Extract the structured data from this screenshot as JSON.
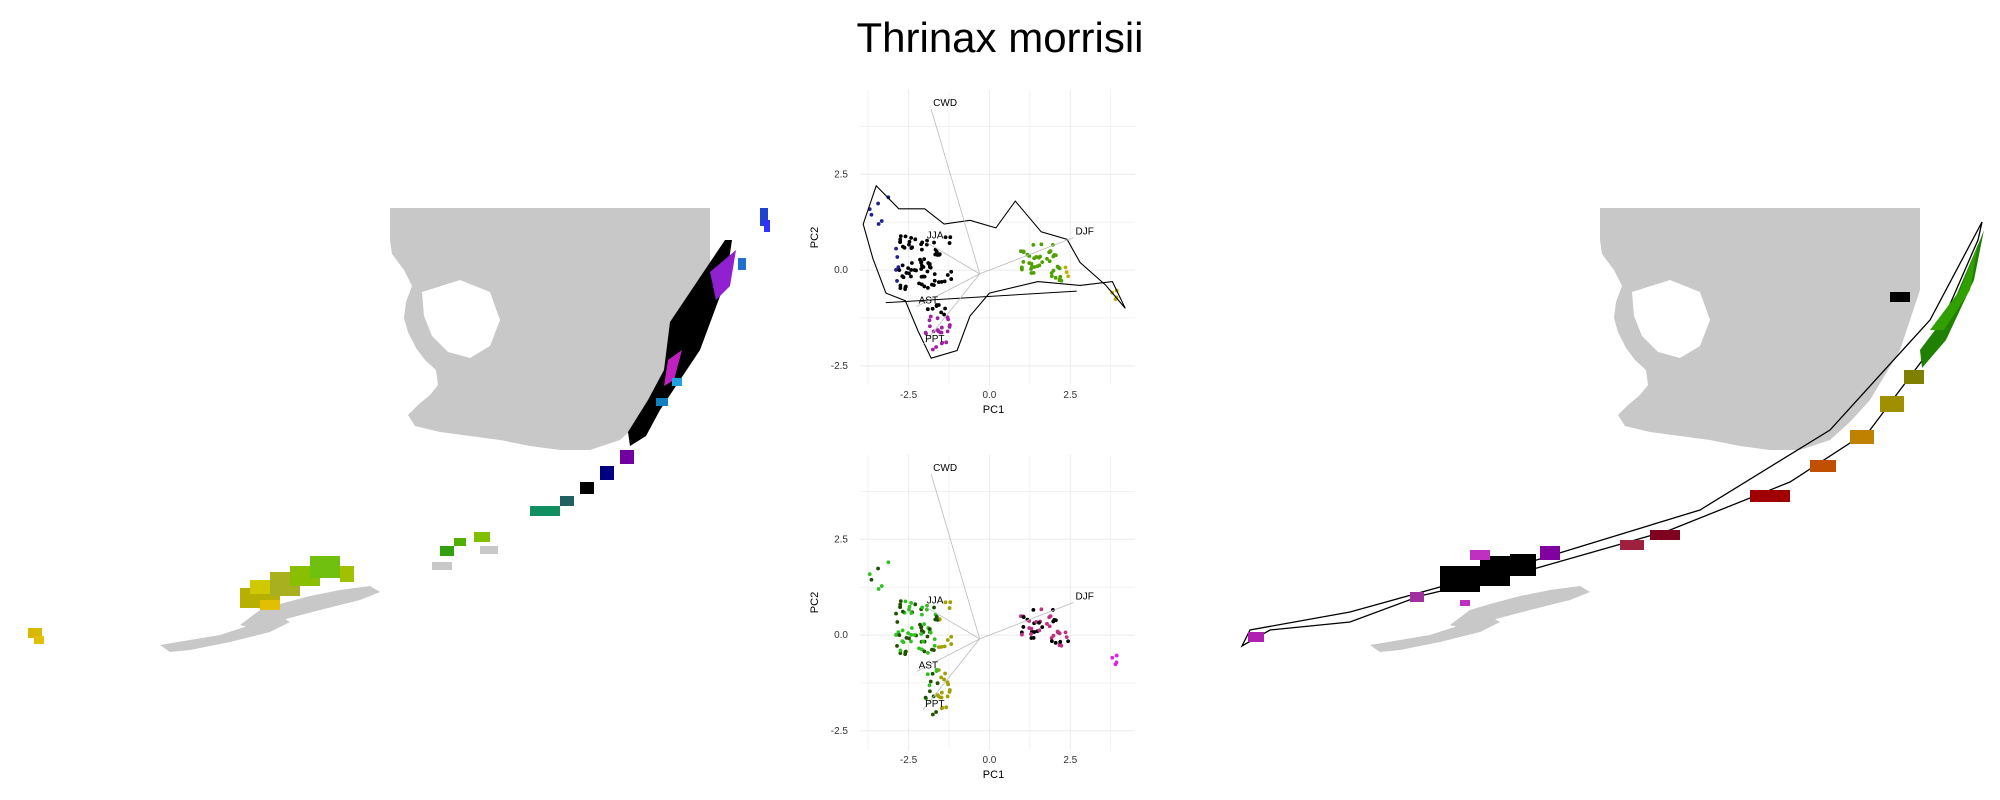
{
  "title": "Thrinax morrisii",
  "colors": {
    "land": "#c8c8c8",
    "grid": "#ebebeb",
    "hull": "#000000",
    "arrow": "#bbbbbb"
  },
  "chart_data": [
    {
      "type": "map",
      "name": "left-map",
      "legend": "none"
    },
    {
      "type": "scatter",
      "name": "pca-top",
      "xlabel": "PC1",
      "ylabel": "PC2",
      "xlim": [
        -4.0,
        4.5
      ],
      "ylim": [
        -3.0,
        4.7
      ],
      "xticks": [
        "-2.5",
        "0.0",
        "2.5"
      ],
      "yticks": [
        "-2.5",
        "0.0",
        "2.5"
      ],
      "grid": true,
      "hull": true,
      "variables": [
        {
          "label": "CWD",
          "x": -1.8,
          "y": 4.2
        },
        {
          "label": "DJF",
          "x": 2.6,
          "y": 0.85
        },
        {
          "label": "JJA",
          "x": -2.0,
          "y": 0.75
        },
        {
          "label": "AST",
          "x": -2.25,
          "y": -0.95
        },
        {
          "label": "PPT",
          "x": -2.05,
          "y": -1.95
        }
      ]
    },
    {
      "type": "scatter",
      "name": "pca-bottom",
      "xlabel": "PC1",
      "ylabel": "PC2",
      "xlim": [
        -4.0,
        4.5
      ],
      "ylim": [
        -3.0,
        4.7
      ],
      "xticks": [
        "-2.5",
        "0.0",
        "2.5"
      ],
      "yticks": [
        "-2.5",
        "0.0",
        "2.5"
      ],
      "grid": true,
      "hull": false,
      "variables": [
        {
          "label": "CWD",
          "x": -1.8,
          "y": 4.2
        },
        {
          "label": "DJF",
          "x": 2.6,
          "y": 0.85
        },
        {
          "label": "JJA",
          "x": -2.0,
          "y": 0.75
        },
        {
          "label": "AST",
          "x": -2.25,
          "y": -0.95
        },
        {
          "label": "PPT",
          "x": -2.05,
          "y": -1.95
        }
      ]
    },
    {
      "type": "map",
      "name": "right-map",
      "legend": "none"
    }
  ]
}
